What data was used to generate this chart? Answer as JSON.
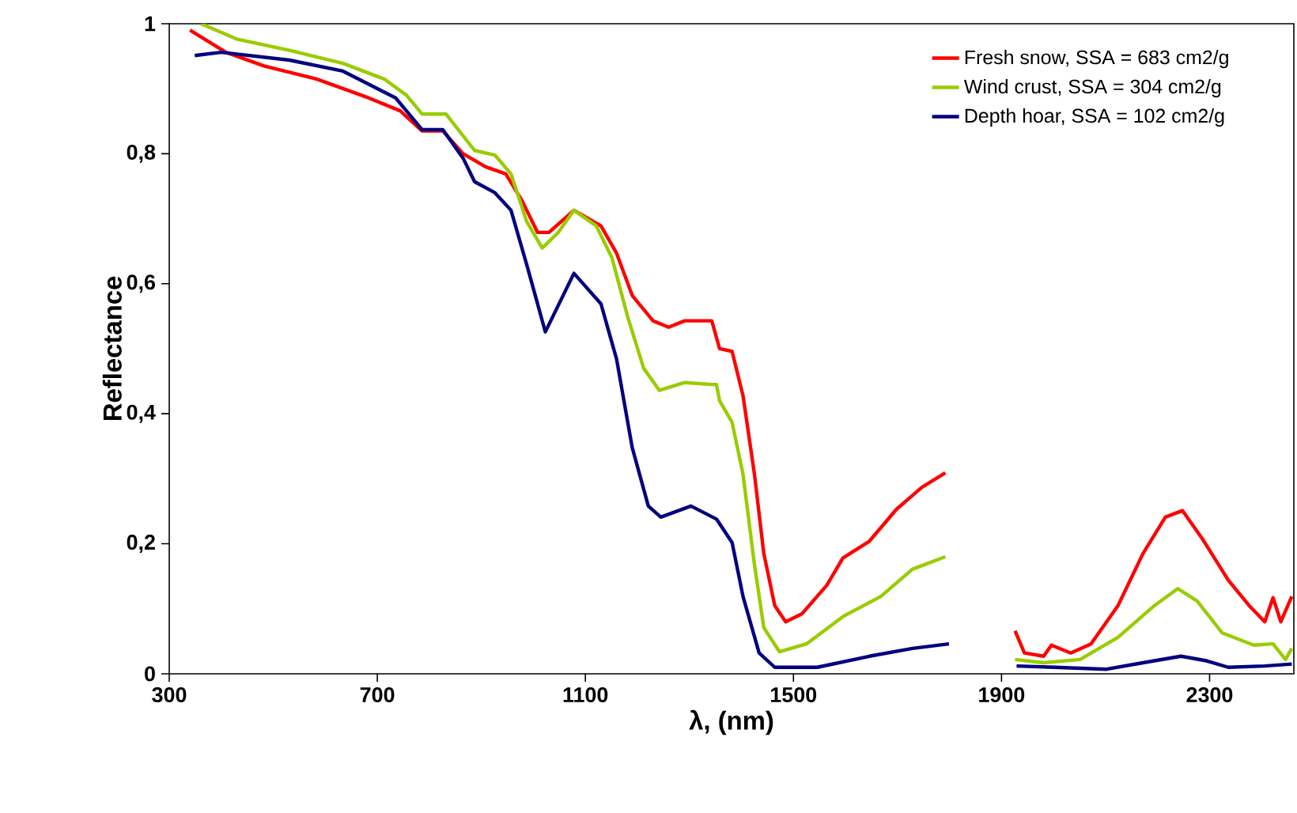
{
  "chart_data": {
    "type": "line",
    "xlabel": "λ,  (nm)",
    "ylabel": "Reflectance",
    "xlim": [
      300,
      2462
    ],
    "ylim": [
      0,
      1
    ],
    "xticks": [
      300,
      700,
      1100,
      1500,
      1900,
      2300
    ],
    "yticks": [
      0,
      {
        "value": 0.2,
        "label": "0,2"
      },
      {
        "value": 0.4,
        "label": "0,4"
      },
      {
        "value": 0.6,
        "label": "0,6"
      },
      {
        "value": 0.8,
        "label": "0,8"
      },
      1
    ],
    "grid": false,
    "legend": "top right",
    "marker": "none",
    "line_style": "solid",
    "series": [
      {
        "name": "Fresh snow, SSA = 683 cm2/g",
        "color": "#ff0000",
        "x": [
          340,
          409,
          482,
          583,
          683,
          744,
          786,
          826,
          865,
          908,
          947,
          978,
          1008,
          1030,
          1078,
          1130,
          1160,
          1190,
          1230,
          1260,
          1291,
          1343,
          1358,
          1382,
          1403,
          1425,
          1443,
          1464,
          1485,
          1516,
          1564,
          1595,
          1646,
          1698,
          1747,
          1792,
          1860,
          1926,
          1944,
          1981,
          1996,
          2033,
          2072,
          2124,
          2172,
          2215,
          2248,
          2285,
          2336,
          2376,
          2406,
          2422,
          2437,
          2458
        ],
        "values": [
          0.99,
          0.956,
          0.935,
          0.915,
          0.886,
          0.866,
          0.835,
          0.835,
          0.8,
          0.78,
          0.769,
          0.728,
          0.679,
          0.679,
          0.713,
          0.689,
          0.647,
          0.582,
          0.543,
          0.533,
          0.543,
          0.543,
          0.5,
          0.496,
          0.428,
          0.307,
          0.185,
          0.105,
          0.08,
          0.092,
          0.136,
          0.178,
          0.204,
          0.253,
          0.287,
          0.309,
          null,
          0.066,
          0.032,
          0.027,
          0.044,
          0.032,
          0.046,
          0.105,
          0.185,
          0.241,
          0.251,
          0.209,
          0.144,
          0.105,
          0.08,
          0.117,
          0.08,
          0.119
        ]
      },
      {
        "name": "Wind crust, SSA = 304 cm2/g",
        "color": "#99cc00",
        "x": [
          361,
          431,
          531,
          634,
          713,
          756,
          786,
          832,
          887,
          926,
          957,
          987,
          1017,
          1048,
          1078,
          1121,
          1151,
          1181,
          1212,
          1242,
          1291,
          1343,
          1352,
          1358,
          1382,
          1403,
          1425,
          1443,
          1473,
          1525,
          1595,
          1668,
          1729,
          1792,
          1860,
          1926,
          1981,
          2051,
          2124,
          2194,
          2239,
          2276,
          2324,
          2385,
          2422,
          2446,
          2458
        ],
        "values": [
          1.0,
          0.976,
          0.959,
          0.939,
          0.915,
          0.89,
          0.861,
          0.861,
          0.805,
          0.798,
          0.769,
          0.696,
          0.655,
          0.679,
          0.713,
          0.689,
          0.64,
          0.55,
          0.47,
          0.436,
          0.448,
          0.445,
          0.445,
          0.42,
          0.387,
          0.307,
          0.168,
          0.071,
          0.034,
          0.046,
          0.088,
          0.119,
          0.161,
          0.18,
          null,
          0.022,
          0.017,
          0.022,
          0.056,
          0.105,
          0.131,
          0.112,
          0.063,
          0.044,
          0.046,
          0.022,
          0.039
        ]
      },
      {
        "name": "Depth hoar, SSA = 102 cm2/g",
        "color": "#000080",
        "x": [
          349,
          400,
          531,
          634,
          735,
          786,
          826,
          865,
          887,
          926,
          957,
          987,
          1023,
          1078,
          1130,
          1160,
          1190,
          1221,
          1245,
          1303,
          1352,
          1382,
          1403,
          1434,
          1464,
          1546,
          1646,
          1729,
          1799,
          1860,
          1929,
          2002,
          2102,
          2172,
          2245,
          2294,
          2336,
          2406,
          2458
        ],
        "values": [
          0.951,
          0.956,
          0.944,
          0.927,
          0.886,
          0.837,
          0.837,
          0.793,
          0.757,
          0.74,
          0.713,
          0.63,
          0.526,
          0.616,
          0.569,
          0.484,
          0.348,
          0.258,
          0.241,
          0.258,
          0.238,
          0.202,
          0.119,
          0.032,
          0.01,
          0.01,
          0.027,
          0.039,
          0.046,
          null,
          0.012,
          0.01,
          0.007,
          0.017,
          0.027,
          0.02,
          0.01,
          0.012,
          0.015
        ]
      }
    ]
  }
}
